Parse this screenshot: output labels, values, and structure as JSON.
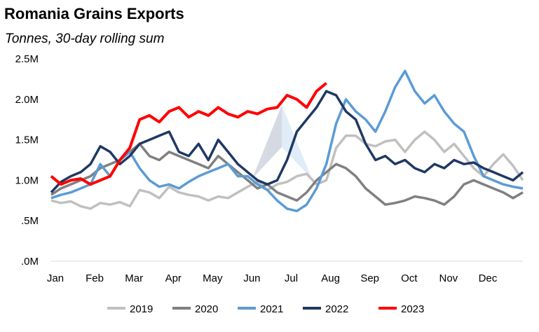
{
  "chart_data": {
    "type": "line",
    "title": "Romania Grains Exports",
    "subtitle": "Tonnes, 30-day rolling sum",
    "x_ticks": [
      "Jan",
      "Feb",
      "Mar",
      "Apr",
      "May",
      "Jun",
      "Jul",
      "Aug",
      "Sep",
      "Oct",
      "Nov",
      "Dec"
    ],
    "y_ticks": [
      ".0M",
      ".5M",
      "1.0M",
      "1.5M",
      "2.0M",
      "2.5M"
    ],
    "ylim": [
      0,
      2.5
    ],
    "y_unit": "million tonnes",
    "x_unit": "month",
    "xlim": [
      0,
      12
    ],
    "grid": false,
    "legend": "bottom",
    "series": [
      {
        "name": "2019",
        "color": "#c0c0c0",
        "x": [
          0,
          0.25,
          0.5,
          0.75,
          1.0,
          1.25,
          1.5,
          1.75,
          2.0,
          2.25,
          2.5,
          2.75,
          3.0,
          3.25,
          3.5,
          3.75,
          4.0,
          4.25,
          4.5,
          4.75,
          5.0,
          5.25,
          5.5,
          5.75,
          6.0,
          6.25,
          6.5,
          6.75,
          7.0,
          7.25,
          7.5,
          7.75,
          8.0,
          8.25,
          8.5,
          8.75,
          9.0,
          9.25,
          9.5,
          9.75,
          10.0,
          10.25,
          10.5,
          10.75,
          11.0,
          11.25,
          11.5,
          11.75,
          12.0
        ],
        "y": [
          0.75,
          0.72,
          0.74,
          0.68,
          0.65,
          0.72,
          0.7,
          0.73,
          0.68,
          0.88,
          0.85,
          0.78,
          0.92,
          0.85,
          0.82,
          0.8,
          0.75,
          0.8,
          0.78,
          0.85,
          0.92,
          0.98,
          0.88,
          0.95,
          0.98,
          1.05,
          1.08,
          0.95,
          1.0,
          1.4,
          1.55,
          1.55,
          1.45,
          1.42,
          1.48,
          1.5,
          1.35,
          1.5,
          1.6,
          1.5,
          1.35,
          1.45,
          1.3,
          1.15,
          1.05,
          1.2,
          1.32,
          1.18,
          1.0
        ]
      },
      {
        "name": "2020",
        "color": "#808080",
        "x": [
          0,
          0.25,
          0.5,
          0.75,
          1.0,
          1.25,
          1.5,
          1.75,
          2.0,
          2.25,
          2.5,
          2.75,
          3.0,
          3.25,
          3.5,
          3.75,
          4.0,
          4.25,
          4.5,
          4.75,
          5.0,
          5.25,
          5.5,
          5.75,
          6.0,
          6.25,
          6.5,
          6.75,
          7.0,
          7.25,
          7.5,
          7.75,
          8.0,
          8.25,
          8.5,
          8.75,
          9.0,
          9.25,
          9.5,
          9.75,
          10.0,
          10.25,
          10.5,
          10.75,
          11.0,
          11.25,
          11.5,
          11.75,
          12.0
        ],
        "y": [
          0.82,
          0.9,
          0.95,
          1.0,
          1.05,
          1.15,
          1.2,
          1.25,
          1.35,
          1.45,
          1.3,
          1.25,
          1.35,
          1.3,
          1.25,
          1.2,
          1.15,
          1.3,
          1.2,
          1.1,
          1.0,
          0.9,
          0.95,
          0.85,
          0.8,
          0.75,
          0.85,
          1.0,
          1.1,
          1.2,
          1.15,
          1.05,
          0.9,
          0.8,
          0.7,
          0.72,
          0.75,
          0.8,
          0.78,
          0.75,
          0.7,
          0.8,
          0.95,
          1.0,
          0.95,
          0.9,
          0.85,
          0.78,
          0.85
        ]
      },
      {
        "name": "2021",
        "color": "#5b9bd5",
        "x": [
          0,
          0.25,
          0.5,
          0.75,
          1.0,
          1.25,
          1.5,
          1.75,
          2.0,
          2.25,
          2.5,
          2.75,
          3.0,
          3.25,
          3.5,
          3.75,
          4.0,
          4.25,
          4.5,
          4.75,
          5.0,
          5.25,
          5.5,
          5.75,
          6.0,
          6.25,
          6.5,
          6.75,
          7.0,
          7.25,
          7.5,
          7.75,
          8.0,
          8.25,
          8.5,
          8.75,
          9.0,
          9.25,
          9.5,
          9.75,
          10.0,
          10.25,
          10.5,
          10.75,
          11.0,
          11.25,
          11.5,
          11.75,
          12.0
        ],
        "y": [
          0.78,
          0.82,
          0.85,
          0.9,
          0.95,
          1.2,
          1.05,
          1.25,
          1.35,
          1.15,
          1.0,
          0.92,
          0.95,
          0.9,
          0.98,
          1.05,
          1.1,
          1.15,
          1.2,
          1.05,
          1.05,
          0.95,
          0.88,
          0.75,
          0.65,
          0.62,
          0.7,
          0.9,
          1.2,
          1.7,
          2.0,
          1.85,
          1.75,
          1.6,
          1.85,
          2.15,
          2.35,
          2.1,
          1.95,
          2.05,
          1.85,
          1.7,
          1.6,
          1.3,
          1.05,
          1.0,
          0.95,
          0.92,
          0.9
        ]
      },
      {
        "name": "2022",
        "color": "#1f3864",
        "x": [
          0,
          0.25,
          0.5,
          0.75,
          1.0,
          1.25,
          1.5,
          1.75,
          2.0,
          2.25,
          2.5,
          2.75,
          3.0,
          3.25,
          3.5,
          3.75,
          4.0,
          4.25,
          4.5,
          4.75,
          5.0,
          5.25,
          5.5,
          5.75,
          6.0,
          6.25,
          6.5,
          6.75,
          7.0,
          7.25,
          7.5,
          7.75,
          8.0,
          8.25,
          8.5,
          8.75,
          9.0,
          9.25,
          9.5,
          9.75,
          10.0,
          10.25,
          10.5,
          10.75,
          11.0,
          11.25,
          11.5,
          11.75,
          12.0
        ],
        "y": [
          0.85,
          0.98,
          1.05,
          1.1,
          1.2,
          1.42,
          1.35,
          1.2,
          1.3,
          1.45,
          1.5,
          1.55,
          1.6,
          1.35,
          1.3,
          1.45,
          1.25,
          1.5,
          1.35,
          1.2,
          1.1,
          1.0,
          0.95,
          1.0,
          1.25,
          1.6,
          1.75,
          1.9,
          2.1,
          2.05,
          1.85,
          1.75,
          1.45,
          1.25,
          1.3,
          1.2,
          1.25,
          1.15,
          1.1,
          1.2,
          1.15,
          1.25,
          1.2,
          1.22,
          1.15,
          1.1,
          1.05,
          1.0,
          1.1
        ]
      },
      {
        "name": "2023",
        "color": "#ff0000",
        "x": [
          0,
          0.25,
          0.5,
          0.75,
          1.0,
          1.25,
          1.5,
          1.75,
          2.0,
          2.25,
          2.5,
          2.75,
          3.0,
          3.25,
          3.5,
          3.75,
          4.0,
          4.25,
          4.5,
          4.75,
          5.0,
          5.25,
          5.5,
          5.75,
          6.0,
          6.25,
          6.5,
          6.75,
          7.0,
          7.25,
          7.5,
          7.75,
          8.0,
          8.25,
          8.5,
          8.75,
          9.0,
          9.25,
          9.5,
          9.75,
          10.0,
          10.25,
          10.5,
          10.75,
          11.0,
          11.25,
          11.5,
          11.75,
          12.0
        ],
        "y": [
          1.05,
          0.95,
          1.0,
          1.02,
          0.95,
          1.0,
          1.05,
          1.25,
          1.4,
          1.75,
          1.8,
          1.72,
          1.85,
          1.9,
          1.78,
          1.85,
          1.8,
          1.9,
          1.82,
          1.78,
          1.85,
          1.82,
          1.88,
          1.9,
          2.05,
          2.0,
          1.9,
          2.1,
          2.2,
          null,
          null,
          null,
          null,
          null,
          null,
          null,
          null,
          null,
          null,
          null,
          null,
          null,
          null,
          null,
          null,
          null,
          null,
          null,
          null
        ]
      }
    ]
  }
}
